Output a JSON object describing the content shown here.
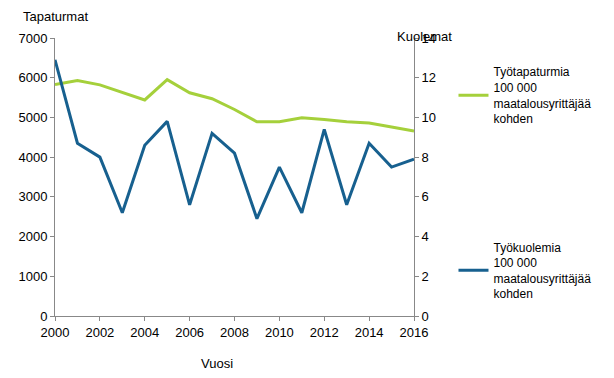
{
  "chart_data": {
    "type": "line",
    "xlabel": "Vuosi",
    "ylabel": "Tapaturmat",
    "y2label": "Kuolemat",
    "x": [
      2000,
      2001,
      2002,
      2003,
      2004,
      2005,
      2006,
      2007,
      2008,
      2009,
      2010,
      2011,
      2012,
      2013,
      2014,
      2015,
      2016
    ],
    "series": [
      {
        "name": "Työtapaturmia 100 000 maatalousyrittäjää kohden",
        "color": "#a5d03b",
        "axis": "y",
        "values": [
          5830,
          5930,
          5820,
          5640,
          5440,
          5950,
          5620,
          5470,
          5200,
          4890,
          4890,
          4990,
          4950,
          4890,
          4860,
          4760,
          4660
        ]
      },
      {
        "name": "Työkuolemia 100 000 maatalousyrittäjää kohden",
        "color": "#17608f",
        "axis": "y2",
        "values": [
          12.9,
          8.7,
          8.0,
          5.2,
          8.6,
          9.8,
          5.6,
          9.2,
          8.2,
          4.9,
          7.5,
          5.2,
          9.4,
          5.6,
          8.7,
          7.5,
          7.9
        ]
      }
    ],
    "xlim": [
      2000,
      2016
    ],
    "xticks": [
      2000,
      2002,
      2004,
      2006,
      2008,
      2010,
      2012,
      2014,
      2016
    ],
    "ylim": [
      0,
      7000
    ],
    "yticks": [
      0,
      1000,
      2000,
      3000,
      4000,
      5000,
      6000,
      7000
    ],
    "y2lim": [
      0,
      14
    ],
    "y2ticks": [
      0,
      2,
      4,
      6,
      8,
      10,
      12,
      14
    ],
    "grid": false,
    "legend": "right"
  }
}
